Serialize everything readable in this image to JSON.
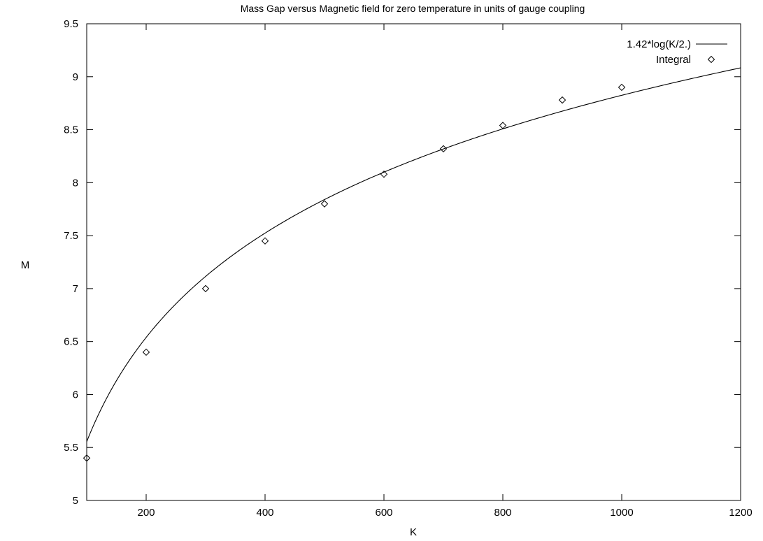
{
  "chart_data": {
    "type": "scatter",
    "title": "Mass Gap versus Magnetic field for zero temperature in units of gauge coupling",
    "xlabel": "K",
    "ylabel": "M",
    "xlim": [
      100,
      1200
    ],
    "ylim": [
      5,
      9.5
    ],
    "x_ticks": [
      200,
      400,
      600,
      800,
      1000,
      1200
    ],
    "y_ticks": [
      "5",
      "5.5",
      "6",
      "6.5",
      "7",
      "7.5",
      "8",
      "8.5",
      "9",
      "9.5"
    ],
    "grid": false,
    "legend_position": "top-right",
    "series": [
      {
        "name": "1.42*log(K/2.)",
        "kind": "line",
        "function": {
          "coefficient": 1.42,
          "divisor": 2
        }
      },
      {
        "name": "Integral",
        "kind": "points",
        "marker": "diamond",
        "x": [
          100,
          200,
          300,
          400,
          500,
          600,
          700,
          800,
          900,
          1000
        ],
        "y": [
          5.4,
          6.4,
          7.0,
          7.45,
          7.8,
          8.08,
          8.32,
          8.54,
          8.78,
          8.9
        ]
      }
    ]
  }
}
